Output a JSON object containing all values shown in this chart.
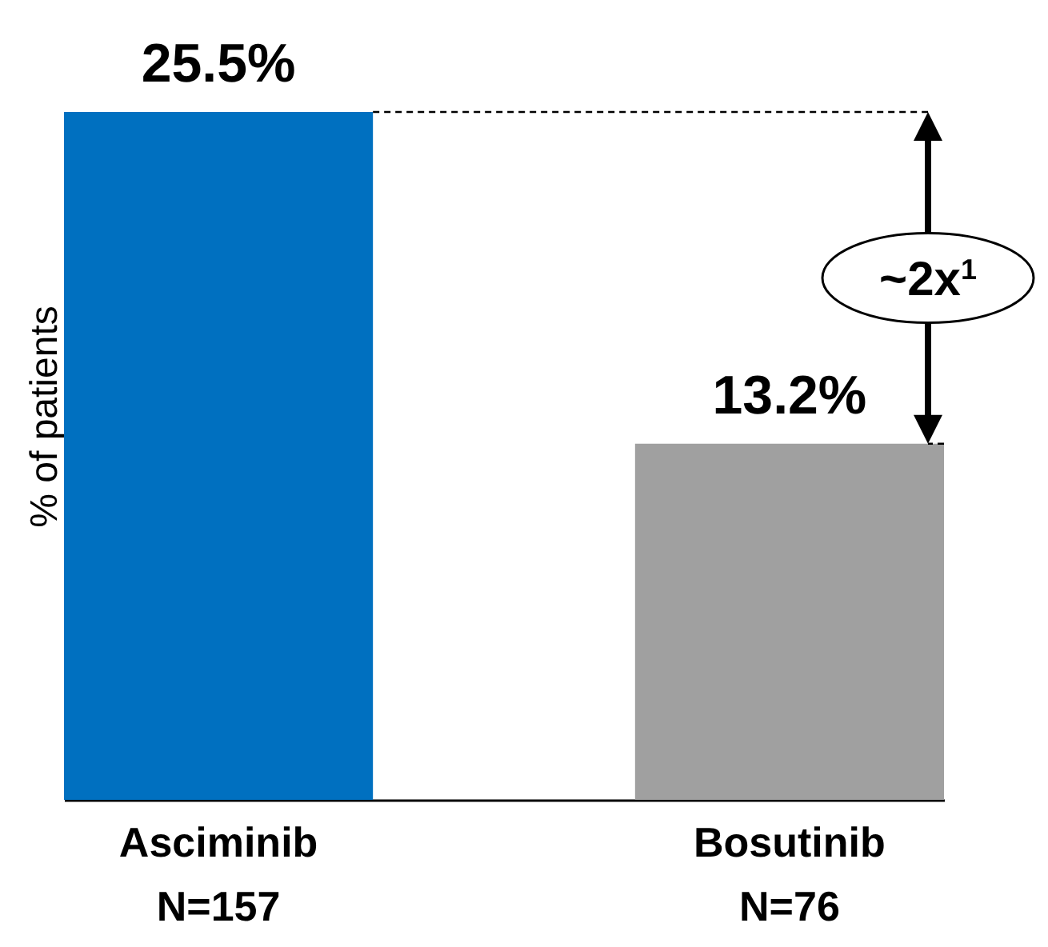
{
  "chart_data": {
    "type": "bar",
    "ylabel": "% of patients",
    "categories": [
      "Asciminib\nN=157",
      "Bosutinib\nN=76"
    ],
    "values": [
      25.5,
      13.2
    ],
    "value_labels": [
      "25.5%",
      "13.2%"
    ],
    "colors": [
      "#0070c0",
      "#a0a0a0"
    ],
    "annotations": [
      "~2x$^{1}$"
    ],
    "tick_labels": "x"
  }
}
